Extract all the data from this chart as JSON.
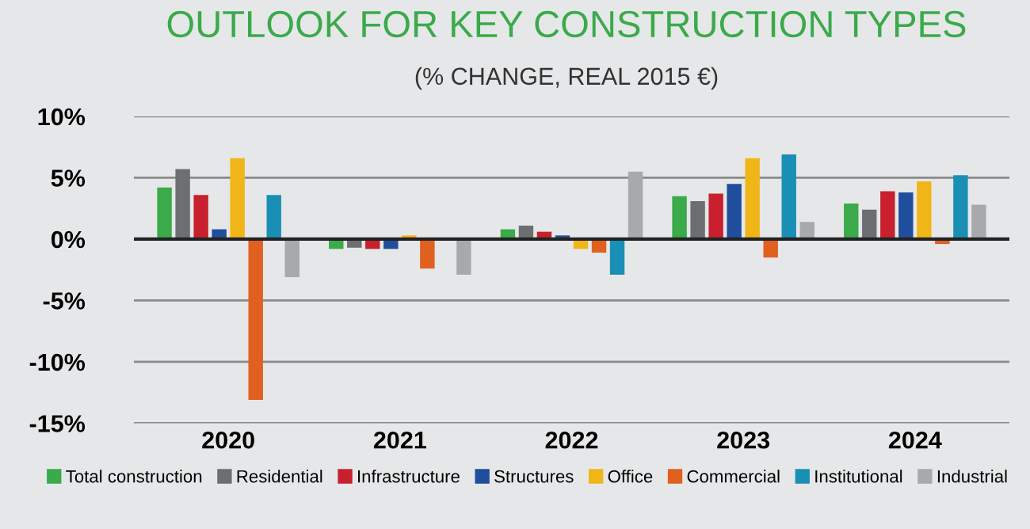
{
  "chart_data": {
    "type": "bar",
    "title": "OUTLOOK FOR KEY CONSTRUCTION TYPES",
    "subtitle": "(% CHANGE, REAL 2015 €)",
    "categories": [
      "2020",
      "2021",
      "2022",
      "2023",
      "2024"
    ],
    "series": [
      {
        "name": "Total construction",
        "color": "#3aaa4a",
        "values": [
          4.2,
          -0.8,
          0.8,
          3.5,
          2.9
        ]
      },
      {
        "name": "Residential",
        "color": "#6d6e71",
        "values": [
          5.7,
          -0.7,
          1.1,
          3.1,
          2.4
        ]
      },
      {
        "name": "Infrastructure",
        "color": "#c8202f",
        "values": [
          3.6,
          -0.8,
          0.6,
          3.7,
          3.9
        ]
      },
      {
        "name": "Structures",
        "color": "#1f4e9c",
        "values": [
          0.8,
          -0.8,
          0.3,
          4.5,
          3.8
        ]
      },
      {
        "name": "Office",
        "color": "#f0b618",
        "values": [
          6.6,
          0.3,
          -0.8,
          6.6,
          4.7
        ]
      },
      {
        "name": "Commercial",
        "color": "#e06020",
        "values": [
          -13.1,
          -2.4,
          -1.1,
          -1.5,
          -0.4
        ]
      },
      {
        "name": "Institutional",
        "color": "#1a8fb5",
        "values": [
          3.6,
          null,
          -2.9,
          6.9,
          5.2
        ]
      },
      {
        "name": "Industrial",
        "color": "#a7a9ac",
        "values": [
          -3.1,
          -2.9,
          5.5,
          1.4,
          2.8
        ]
      }
    ],
    "ylim": [
      -15,
      10
    ],
    "yticks": [
      {
        "value": -15,
        "label": "-15%"
      },
      {
        "value": -10,
        "label": "-10%"
      },
      {
        "value": -5,
        "label": "-5%"
      },
      {
        "value": 0,
        "label": "0%"
      },
      {
        "value": 5,
        "label": "5%"
      },
      {
        "value": 10,
        "label": "10%"
      }
    ],
    "grid": "y",
    "legend": "bottom"
  }
}
